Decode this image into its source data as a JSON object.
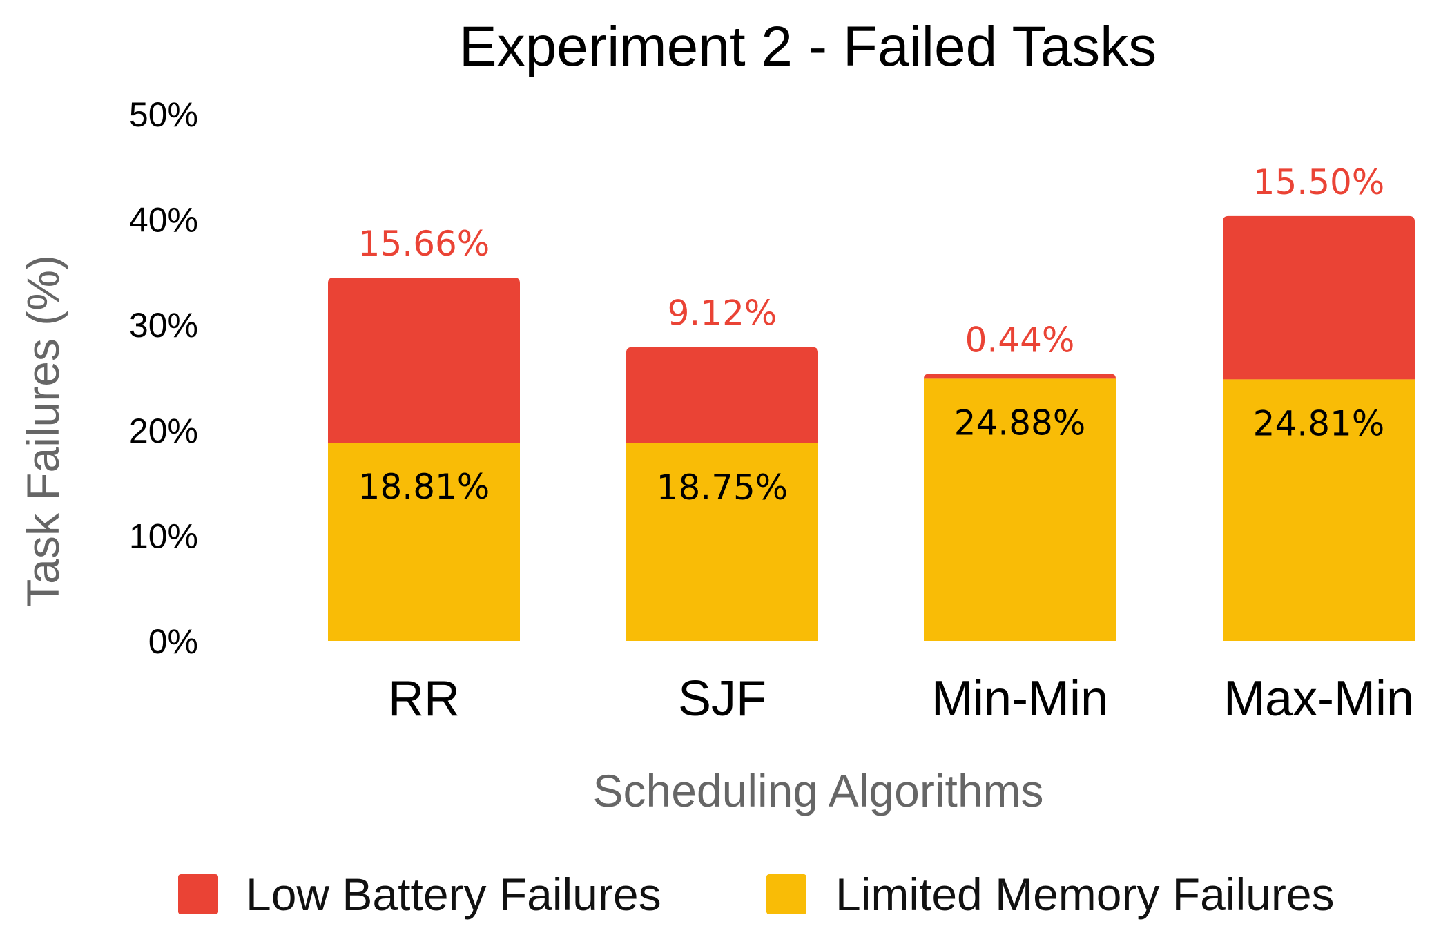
{
  "chart_data": {
    "type": "bar",
    "stacked": true,
    "title": "Experiment 2 - Failed Tasks",
    "xlabel": "Scheduling Algorithms",
    "ylabel": "Task Failures (%)",
    "categories": [
      "RR",
      "SJF",
      "Min-Min",
      "Max-Min"
    ],
    "ylim": [
      0,
      50
    ],
    "y_ticks": [
      "0%",
      "10%",
      "20%",
      "30%",
      "40%",
      "50%"
    ],
    "grid": false,
    "legend_position": "bottom",
    "series": [
      {
        "name": "Limited Memory Failures",
        "color": "#F9BC06",
        "label_color": "#000000",
        "values": [
          18.81,
          18.75,
          24.88,
          24.81
        ],
        "labels": [
          "18.81%",
          "18.75%",
          "24.88%",
          "24.81%"
        ]
      },
      {
        "name": "Low Battery Failures",
        "color": "#EA4335",
        "label_color": "#EA4335",
        "values": [
          15.66,
          9.12,
          0.44,
          15.5
        ],
        "labels": [
          "15.66%",
          "9.12%",
          "0.44%",
          "15.50%"
        ]
      }
    ],
    "legend": [
      {
        "name": "Low Battery Failures",
        "color": "#EA4335"
      },
      {
        "name": "Limited Memory Failures",
        "color": "#F9BC06"
      }
    ]
  }
}
